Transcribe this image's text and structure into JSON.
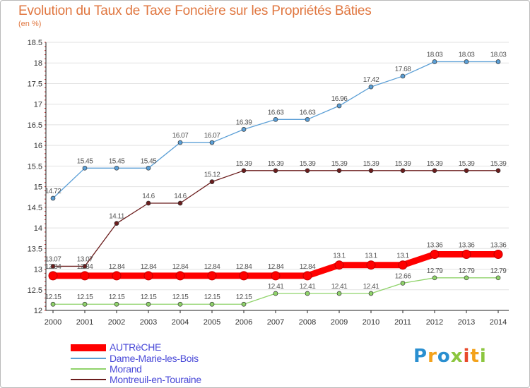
{
  "title": "Evolution du Taux de Taxe Foncière sur les Propriétés Bâties",
  "unit": "(en %)",
  "logo": {
    "letters": [
      "P",
      "r",
      "o",
      "x",
      "i",
      "t",
      "i"
    ],
    "colors": [
      "#2a8fd0",
      "#f3a21c",
      "#2a8fd0",
      "#8cc63f",
      "#e8492b",
      "#f3a21c",
      "#8cc63f"
    ]
  },
  "chart_data": {
    "type": "line",
    "title": "Evolution du Taux de Taxe Foncière sur les Propriétés Bâties",
    "ylabel": "(en %)",
    "x": [
      "2000",
      "2001",
      "2002",
      "2003",
      "2004",
      "2005",
      "2006",
      "2007",
      "2008",
      "2009",
      "2010",
      "2011",
      "2012",
      "2013",
      "2014"
    ],
    "ylim": [
      12,
      18.5
    ],
    "yticks": [
      "12",
      "12.5",
      "13",
      "13.5",
      "14",
      "14.5",
      "15",
      "15.5",
      "16",
      "16.5",
      "17",
      "17.5",
      "18",
      "18.5"
    ],
    "grid": "horizontal",
    "legend": "bottom-left",
    "series": [
      {
        "name": "AUTRèCHE",
        "color": "#ff0000",
        "values": [
          12.84,
          12.84,
          12.84,
          12.84,
          12.84,
          12.84,
          12.84,
          12.84,
          12.84,
          13.1,
          13.1,
          13.1,
          13.36,
          13.36,
          13.36
        ],
        "labels": [
          "12.84",
          "12.84",
          "12.84",
          "12.84",
          "12.84",
          "12.84",
          "12.84",
          "12.84",
          "12.84",
          "13.1",
          "13.1",
          "13.1",
          "13.36",
          "13.36",
          "13.36"
        ]
      },
      {
        "name": "Dame-Marie-les-Bois",
        "color": "#5b9fd6",
        "values": [
          14.72,
          15.45,
          15.45,
          15.45,
          16.07,
          16.07,
          16.39,
          16.63,
          16.63,
          16.96,
          17.42,
          17.68,
          18.03,
          18.03,
          18.03
        ],
        "labels": [
          "14.72",
          "15.45",
          "15.45",
          "15.45",
          "16.07",
          "16.07",
          "16.39",
          "16.63",
          "16.63",
          "16.96",
          "17.42",
          "17.68",
          "18.03",
          "18.03",
          "18.03"
        ]
      },
      {
        "name": "Morand",
        "color": "#8fd36a",
        "values": [
          12.15,
          12.15,
          12.15,
          12.15,
          12.15,
          12.15,
          12.15,
          12.41,
          12.41,
          12.41,
          12.41,
          12.66,
          12.79,
          12.79,
          12.79
        ],
        "labels": [
          "12.15",
          "12.15",
          "12.15",
          "12.15",
          "12.15",
          "12.15",
          "12.15",
          "12.41",
          "12.41",
          "12.41",
          "12.41",
          "12.66",
          "12.79",
          "12.79",
          "12.79"
        ]
      },
      {
        "name": "Montreuil-en-Touraine",
        "color": "#6b1d1d",
        "values": [
          13.07,
          13.07,
          14.11,
          14.6,
          14.6,
          15.12,
          15.39,
          15.39,
          15.39,
          15.39,
          15.39,
          15.39,
          15.39,
          15.39,
          15.39
        ],
        "labels": [
          "13.07",
          "13.07",
          "14.11",
          "14.6",
          "14.6",
          "15.12",
          "15.39",
          "15.39",
          "15.39",
          "15.39",
          "15.39",
          "15.39",
          "15.39",
          "15.39",
          "15.39"
        ]
      }
    ]
  }
}
